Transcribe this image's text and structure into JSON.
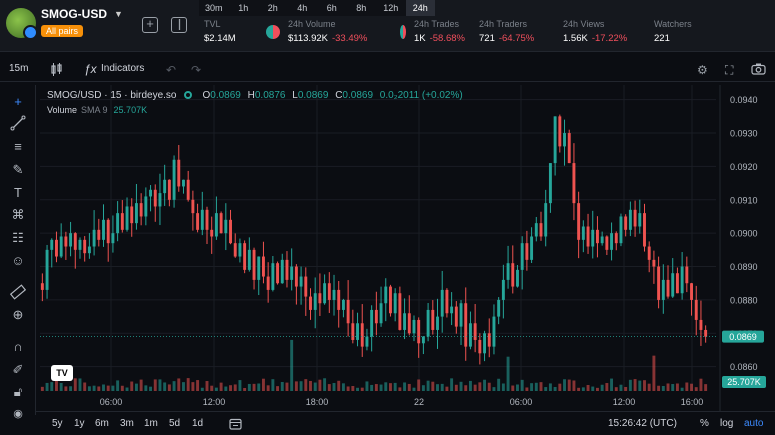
{
  "header": {
    "pair": "SMOG-USD",
    "badge": "All pairs",
    "timeframes": [
      "30m",
      "1h",
      "2h",
      "4h",
      "6h",
      "8h",
      "12h",
      "24h"
    ],
    "active_timeframe": "24h",
    "stats": [
      {
        "label": "TVL",
        "value": "$2.14M",
        "change": ""
      },
      {
        "label": "24h Volume",
        "value": "$113.92K",
        "change": "-33.49%"
      },
      {
        "label": "24h Trades",
        "value": "1K",
        "change": "-58.68%"
      },
      {
        "label": "24h Traders",
        "value": "721",
        "change": "-64.75%"
      },
      {
        "label": "24h Views",
        "value": "1.56K",
        "change": "-17.22%"
      },
      {
        "label": "Watchers",
        "value": "221",
        "change": ""
      }
    ]
  },
  "toolbar": {
    "interval": "15m",
    "indicators_label": "Indicators"
  },
  "legend": {
    "title": "SMOG/USD · 15 · birdeye.so",
    "o_label": "O",
    "o": "0.0869",
    "h_label": "H",
    "h": "0.0876",
    "l_label": "L",
    "l": "0.0869",
    "c_label": "C",
    "c": "0.0869",
    "change": "0.0₂2011 (+0.02%)",
    "volume_label": "Volume",
    "sma_label": "SMA 9",
    "volume_value": "25.707K"
  },
  "bottom": {
    "ranges": [
      "5y",
      "1y",
      "6m",
      "3m",
      "1m",
      "5d",
      "1d"
    ],
    "time": "15:26:42 (UTC)",
    "percent_label": "%",
    "log_label": "log",
    "auto_label": "auto"
  },
  "colors": {
    "up": "#26a69a",
    "down": "#ef5350",
    "background": "#0b0d12"
  },
  "chart_data": {
    "type": "candlestick",
    "x_tick_labels": [
      "06:00",
      "12:00",
      "18:00",
      "22",
      "06:00",
      "12:00",
      "16:00"
    ],
    "y_tick_labels": [
      "0.0940",
      "0.0930",
      "0.0920",
      "0.0910",
      "0.0900",
      "0.0890",
      "0.0880",
      "0.0870",
      "0.0860"
    ],
    "ylim": [
      0.08575,
      0.0942
    ],
    "last_price_label": "0.0869",
    "volume_label": "25.707K",
    "closes": [
      0.0883,
      0.0895,
      0.0898,
      0.0893,
      0.0899,
      0.0896,
      0.09,
      0.0895,
      0.0898,
      0.0894,
      0.0896,
      0.0901,
      0.0898,
      0.0904,
      0.0897,
      0.09,
      0.0906,
      0.0901,
      0.0908,
      0.0903,
      0.0909,
      0.0905,
      0.0911,
      0.0913,
      0.0908,
      0.0912,
      0.0916,
      0.091,
      0.0922,
      0.0914,
      0.0916,
      0.091,
      0.0906,
      0.0901,
      0.0907,
      0.0901,
      0.0899,
      0.0906,
      0.09,
      0.0904,
      0.0897,
      0.0893,
      0.0897,
      0.0889,
      0.0895,
      0.0886,
      0.0893,
      0.0887,
      0.0883,
      0.0891,
      0.0885,
      0.0892,
      0.0886,
      0.089,
      0.0884,
      0.0887,
      0.0881,
      0.0877,
      0.0882,
      0.0879,
      0.0885,
      0.088,
      0.0883,
      0.0877,
      0.088,
      0.0873,
      0.0868,
      0.0873,
      0.0866,
      0.0869,
      0.0877,
      0.0873,
      0.0879,
      0.0884,
      0.0876,
      0.0882,
      0.0871,
      0.0876,
      0.087,
      0.0874,
      0.0867,
      0.0869,
      0.0877,
      0.0871,
      0.0875,
      0.0883,
      0.0876,
      0.0878,
      0.0872,
      0.0879,
      0.0866,
      0.0873,
      0.0868,
      0.0864,
      0.087,
      0.0866,
      0.0875,
      0.088,
      0.0886,
      0.0891,
      0.0884,
      0.0889,
      0.0897,
      0.0892,
      0.0899,
      0.0903,
      0.0899,
      0.0909,
      0.0921,
      0.0935,
      0.0926,
      0.093,
      0.0921,
      0.0909,
      0.0898,
      0.0902,
      0.0896,
      0.0901,
      0.0897,
      0.0899,
      0.0895,
      0.09,
      0.0897,
      0.0905,
      0.0901,
      0.0907,
      0.0902,
      0.0906,
      0.0896,
      0.0892,
      0.089,
      0.088,
      0.0886,
      0.0881,
      0.0888,
      0.0882,
      0.089,
      0.0885,
      0.088,
      0.0874,
      0.0871,
      0.0869
    ]
  }
}
